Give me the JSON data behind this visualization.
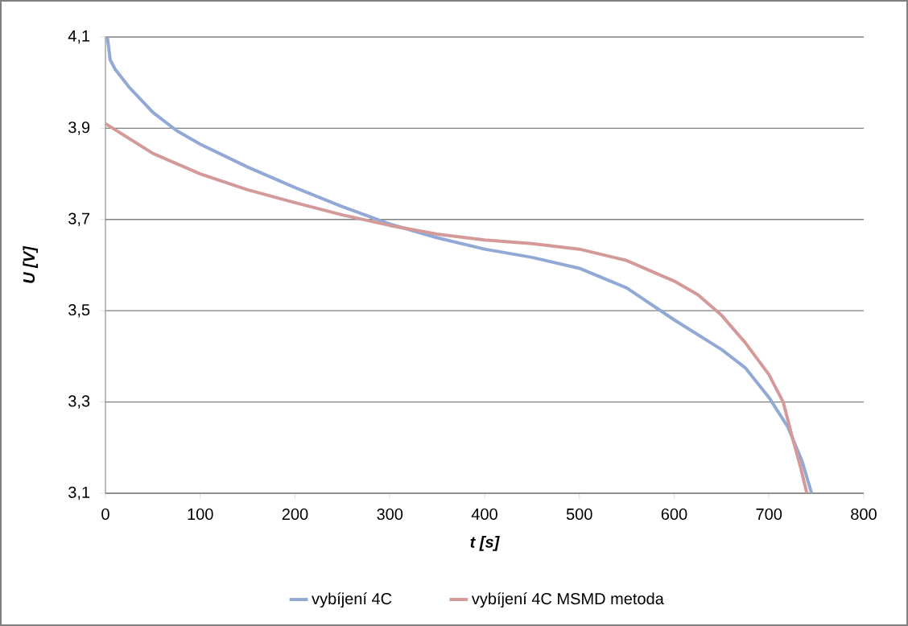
{
  "chart_data": {
    "type": "line",
    "xlabel": "t [s]",
    "ylabel": "U [V]",
    "xlim": [
      0,
      800
    ],
    "ylim": [
      3.1,
      4.1
    ],
    "xticks": [
      0,
      100,
      200,
      300,
      400,
      500,
      600,
      700,
      800
    ],
    "yticks": [
      {
        "value": 3.1,
        "label": "3,1"
      },
      {
        "value": 3.3,
        "label": "3,3"
      },
      {
        "value": 3.5,
        "label": "3,5"
      },
      {
        "value": 3.7,
        "label": "3,7"
      },
      {
        "value": 3.9,
        "label": "3,9"
      },
      {
        "value": 4.1,
        "label": "4,1"
      }
    ],
    "grid": "y",
    "legend": "bottom",
    "marker": "none",
    "line_style": "solid",
    "series": [
      {
        "name": "vybíjení 4C",
        "color": "#93a9d5",
        "x": [
          2,
          5,
          10,
          25,
          50,
          75,
          100,
          150,
          200,
          250,
          300,
          350,
          400,
          450,
          500,
          550,
          600,
          650,
          675,
          700,
          720,
          735,
          745
        ],
        "values": [
          4.1,
          4.05,
          4.03,
          3.99,
          3.935,
          3.895,
          3.865,
          3.815,
          3.77,
          3.728,
          3.69,
          3.66,
          3.635,
          3.617,
          3.593,
          3.55,
          3.48,
          3.415,
          3.375,
          3.31,
          3.245,
          3.17,
          3.1
        ]
      },
      {
        "name": "vybíjení 4C MSMD metoda",
        "color": "#d49a9a",
        "x": [
          0,
          50,
          100,
          150,
          200,
          250,
          300,
          350,
          400,
          450,
          500,
          550,
          600,
          625,
          650,
          675,
          700,
          715,
          725,
          733,
          740
        ],
        "values": [
          3.91,
          3.845,
          3.8,
          3.765,
          3.737,
          3.71,
          3.687,
          3.668,
          3.655,
          3.647,
          3.635,
          3.61,
          3.565,
          3.535,
          3.49,
          3.43,
          3.36,
          3.3,
          3.22,
          3.16,
          3.1
        ]
      }
    ]
  }
}
